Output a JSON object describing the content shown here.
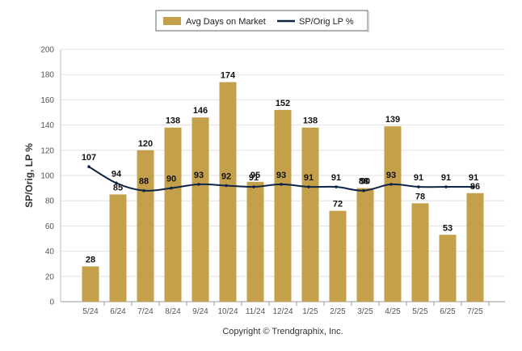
{
  "chart_data": {
    "type": "bar",
    "categories": [
      "5/24",
      "6/24",
      "7/24",
      "8/24",
      "9/24",
      "10/24",
      "11/24",
      "12/24",
      "1/25",
      "2/25",
      "3/25",
      "4/25",
      "5/25",
      "6/25",
      "7/25"
    ],
    "series": [
      {
        "name": "Avg Days on Market",
        "type": "bar",
        "color": "#C4A04A",
        "values": [
          28,
          85,
          120,
          138,
          146,
          174,
          95,
          152,
          138,
          72,
          90,
          139,
          78,
          53,
          86
        ]
      },
      {
        "name": "SP/Orig LP %",
        "type": "line",
        "color": "#0F2447",
        "values": [
          107,
          94,
          88,
          90,
          93,
          92,
          91,
          93,
          91,
          91,
          88,
          93,
          91,
          91,
          91
        ]
      }
    ],
    "ylabel": "SP/Orig, LP %",
    "xlabel": "",
    "ylim": [
      0,
      200
    ],
    "yticks": [
      0,
      20,
      40,
      60,
      80,
      100,
      120,
      140,
      160,
      180,
      200
    ],
    "grid": true,
    "legend_position": "top"
  },
  "legend": {
    "bar_label": "Avg Days on Market",
    "line_label": "SP/Orig LP %"
  },
  "footer": {
    "copyright": "Copyright © Trendgraphix, Inc."
  }
}
